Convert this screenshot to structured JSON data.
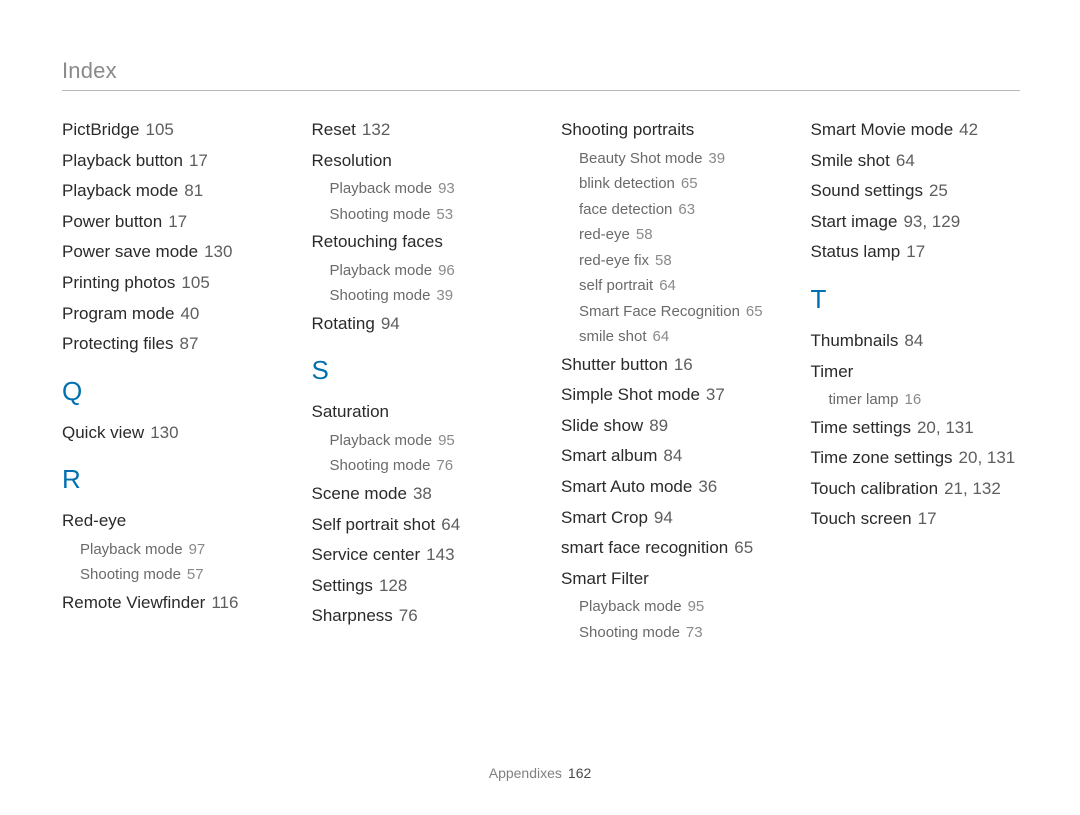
{
  "title": "Index",
  "footer": {
    "label": "Appendixes",
    "page": "162"
  },
  "columns": [
    {
      "items": [
        {
          "type": "entry",
          "label": "PictBridge",
          "page": "105"
        },
        {
          "type": "entry",
          "label": "Playback button",
          "page": "17"
        },
        {
          "type": "entry",
          "label": "Playback mode",
          "page": "81"
        },
        {
          "type": "entry",
          "label": "Power button",
          "page": "17"
        },
        {
          "type": "entry",
          "label": "Power save mode",
          "page": "130"
        },
        {
          "type": "entry",
          "label": "Printing photos",
          "page": "105"
        },
        {
          "type": "entry",
          "label": "Program mode",
          "page": "40"
        },
        {
          "type": "entry",
          "label": "Protecting files",
          "page": "87"
        },
        {
          "type": "letter",
          "label": "Q"
        },
        {
          "type": "entry",
          "label": "Quick view",
          "page": "130"
        },
        {
          "type": "letter",
          "label": "R"
        },
        {
          "type": "entry",
          "label": "Red-eye"
        },
        {
          "type": "sub",
          "label": "Playback mode",
          "page": "97"
        },
        {
          "type": "sub",
          "label": "Shooting mode",
          "page": "57"
        },
        {
          "type": "entry",
          "label": "Remote Viewfinder",
          "page": "116"
        }
      ]
    },
    {
      "items": [
        {
          "type": "entry",
          "label": "Reset",
          "page": "132"
        },
        {
          "type": "entry",
          "label": "Resolution"
        },
        {
          "type": "sub",
          "label": "Playback mode",
          "page": "93"
        },
        {
          "type": "sub",
          "label": "Shooting mode",
          "page": "53"
        },
        {
          "type": "entry",
          "label": "Retouching faces"
        },
        {
          "type": "sub",
          "label": "Playback mode",
          "page": "96"
        },
        {
          "type": "sub",
          "label": "Shooting mode",
          "page": "39"
        },
        {
          "type": "entry",
          "label": "Rotating",
          "page": "94"
        },
        {
          "type": "letter",
          "label": "S"
        },
        {
          "type": "entry",
          "label": "Saturation"
        },
        {
          "type": "sub",
          "label": "Playback mode",
          "page": "95"
        },
        {
          "type": "sub",
          "label": "Shooting mode",
          "page": "76"
        },
        {
          "type": "entry",
          "label": "Scene mode",
          "page": "38"
        },
        {
          "type": "entry",
          "label": "Self portrait shot",
          "page": "64"
        },
        {
          "type": "entry",
          "label": "Service center",
          "page": "143"
        },
        {
          "type": "entry",
          "label": "Settings",
          "page": "128"
        },
        {
          "type": "entry",
          "label": "Sharpness",
          "page": "76"
        }
      ]
    },
    {
      "items": [
        {
          "type": "entry",
          "label": "Shooting portraits"
        },
        {
          "type": "sub",
          "label": "Beauty Shot mode",
          "page": "39"
        },
        {
          "type": "sub",
          "label": "blink detection",
          "page": "65"
        },
        {
          "type": "sub",
          "label": "face detection",
          "page": "63"
        },
        {
          "type": "sub",
          "label": "red-eye",
          "page": "58"
        },
        {
          "type": "sub",
          "label": "red-eye fix",
          "page": "58"
        },
        {
          "type": "sub",
          "label": "self portrait",
          "page": "64"
        },
        {
          "type": "sub",
          "label": "Smart Face Recognition",
          "page": "65"
        },
        {
          "type": "sub",
          "label": "smile shot",
          "page": "64"
        },
        {
          "type": "entry",
          "label": "Shutter button",
          "page": "16"
        },
        {
          "type": "entry",
          "label": "Simple Shot mode",
          "page": "37"
        },
        {
          "type": "entry",
          "label": "Slide show",
          "page": "89"
        },
        {
          "type": "entry",
          "label": "Smart album",
          "page": "84"
        },
        {
          "type": "entry",
          "label": "Smart Auto mode",
          "page": "36"
        },
        {
          "type": "entry",
          "label": "Smart Crop",
          "page": "94"
        },
        {
          "type": "entry",
          "label": "smart face recognition",
          "page": "65"
        },
        {
          "type": "entry",
          "label": "Smart Filter"
        },
        {
          "type": "sub",
          "label": "Playback mode",
          "page": "95"
        },
        {
          "type": "sub",
          "label": "Shooting mode",
          "page": "73"
        }
      ]
    },
    {
      "items": [
        {
          "type": "entry",
          "label": "Smart Movie mode",
          "page": "42"
        },
        {
          "type": "entry",
          "label": "Smile shot",
          "page": "64"
        },
        {
          "type": "entry",
          "label": "Sound settings",
          "page": "25"
        },
        {
          "type": "entry",
          "label": "Start image",
          "page": "93, 129"
        },
        {
          "type": "entry",
          "label": "Status lamp",
          "page": "17"
        },
        {
          "type": "letter",
          "label": "T"
        },
        {
          "type": "entry",
          "label": "Thumbnails",
          "page": "84"
        },
        {
          "type": "entry",
          "label": "Timer"
        },
        {
          "type": "sub",
          "label": "timer lamp",
          "page": "16"
        },
        {
          "type": "entry",
          "label": "Time settings",
          "page": "20, 131"
        },
        {
          "type": "entry",
          "label": "Time zone settings",
          "page": "20, 131"
        },
        {
          "type": "entry",
          "label": "Touch calibration",
          "page": "21, 132"
        },
        {
          "type": "entry",
          "label": "Touch screen",
          "page": "17"
        }
      ]
    }
  ]
}
